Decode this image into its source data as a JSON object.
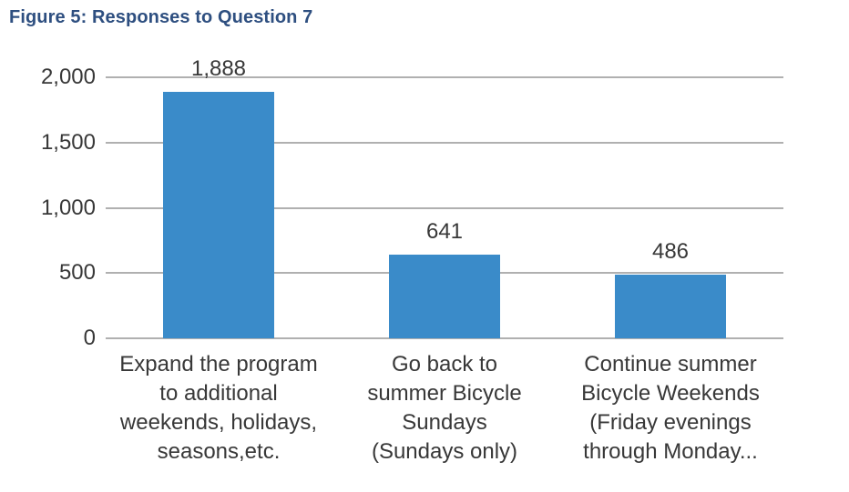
{
  "header": {
    "title": "Figure 5: Responses to Question 7"
  },
  "colors": {
    "title": "#2E4F80",
    "bar": "#3A8BC9",
    "grid": "#B0B0B0",
    "text": "#383838"
  },
  "chart_data": {
    "type": "bar",
    "title": "Figure 5: Responses to Question 7",
    "categories": [
      "Expand the program\nto additional\nweekends, holidays,\nseasons,etc.",
      "Go back to\nsummer Bicycle\nSundays\n(Sundays only)",
      "Continue summer\nBicycle Weekends\n(Friday evenings\nthrough Monday..."
    ],
    "values": [
      1888,
      641,
      486
    ],
    "data_labels": [
      "1,888",
      "641",
      "486"
    ],
    "y_ticks": [
      0,
      500,
      1000,
      1500,
      2000
    ],
    "y_tick_labels": [
      "0",
      "500",
      "1,000",
      "1,500",
      "2,000"
    ],
    "ylim": [
      0,
      2000
    ],
    "xlabel": "",
    "ylabel": "",
    "grid": true,
    "legend": "none"
  }
}
